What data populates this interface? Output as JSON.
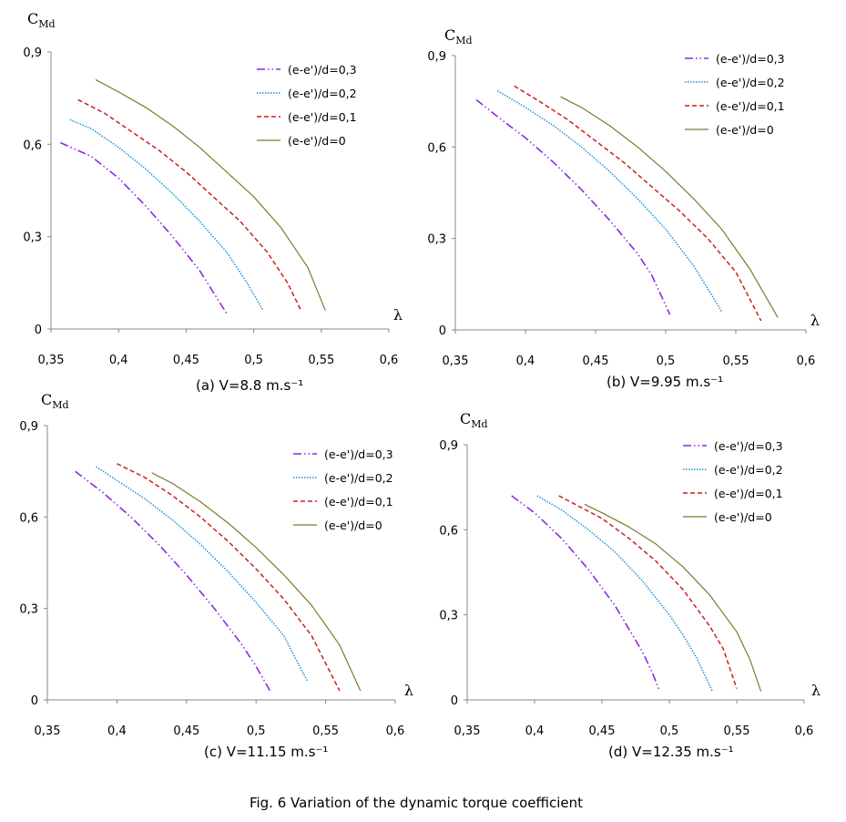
{
  "caption": "Fig. 6  Variation of the dynamic torque coefficient",
  "colors": {
    "s03": "#8a2be2",
    "s02": "#1f8fd6",
    "s01": "#cc1f1f",
    "s00": "#7b7b2e",
    "axis": "#888888"
  },
  "chart_data": [
    {
      "type": "line",
      "title": "(a) V=8.8 m.s⁻¹",
      "ylabel": "C",
      "ylabel_sub": "Md",
      "xlabel": "λ",
      "xlim": [
        0.35,
        0.6
      ],
      "ylim": [
        0,
        0.9
      ],
      "xticks": [
        "0,35",
        "0,4",
        "0,45",
        "0,5",
        "0,55",
        "0,6"
      ],
      "yticks": [
        "0",
        "0,3",
        "0,6",
        "0,9"
      ],
      "series": [
        {
          "name": "(e-e')/d=0,3",
          "x": [
            0.357,
            0.38,
            0.4,
            0.42,
            0.44,
            0.46,
            0.47,
            0.48
          ],
          "y": [
            0.605,
            0.56,
            0.49,
            0.4,
            0.3,
            0.19,
            0.12,
            0.05
          ]
        },
        {
          "name": "(e-e')/d=0,2",
          "x": [
            0.364,
            0.38,
            0.4,
            0.42,
            0.44,
            0.46,
            0.48,
            0.495,
            0.507
          ],
          "y": [
            0.68,
            0.65,
            0.59,
            0.52,
            0.44,
            0.35,
            0.25,
            0.15,
            0.06
          ]
        },
        {
          "name": "(e-e')/d=0,1",
          "x": [
            0.37,
            0.39,
            0.41,
            0.43,
            0.45,
            0.47,
            0.49,
            0.51,
            0.525,
            0.535
          ],
          "y": [
            0.745,
            0.7,
            0.64,
            0.58,
            0.51,
            0.43,
            0.35,
            0.25,
            0.15,
            0.06
          ]
        },
        {
          "name": "(e-e')/d=0",
          "x": [
            0.383,
            0.4,
            0.42,
            0.44,
            0.46,
            0.48,
            0.5,
            0.52,
            0.54,
            0.553
          ],
          "y": [
            0.81,
            0.77,
            0.72,
            0.66,
            0.59,
            0.51,
            0.43,
            0.33,
            0.2,
            0.06
          ]
        }
      ]
    },
    {
      "type": "line",
      "title": "(b) V=9.95 m.s⁻¹",
      "ylabel": "C",
      "ylabel_sub": "Md",
      "xlabel": "λ",
      "xlim": [
        0.35,
        0.6
      ],
      "ylim": [
        0,
        0.9
      ],
      "xticks": [
        "0,35",
        "0,4",
        "0,45",
        "0,5",
        "0,55",
        "0,6"
      ],
      "yticks": [
        "0",
        "0,3",
        "0,6",
        "0,9"
      ],
      "series": [
        {
          "name": "(e-e')/d=0,3",
          "x": [
            0.365,
            0.38,
            0.4,
            0.42,
            0.44,
            0.46,
            0.48,
            0.49,
            0.497,
            0.503
          ],
          "y": [
            0.755,
            0.7,
            0.63,
            0.55,
            0.46,
            0.36,
            0.25,
            0.18,
            0.11,
            0.05
          ]
        },
        {
          "name": "(e-e')/d=0,2",
          "x": [
            0.38,
            0.4,
            0.42,
            0.44,
            0.46,
            0.48,
            0.5,
            0.52,
            0.54
          ],
          "y": [
            0.785,
            0.73,
            0.67,
            0.6,
            0.52,
            0.43,
            0.33,
            0.21,
            0.06
          ]
        },
        {
          "name": "(e-e')/d=0,1",
          "x": [
            0.392,
            0.41,
            0.43,
            0.45,
            0.47,
            0.49,
            0.51,
            0.53,
            0.55,
            0.568
          ],
          "y": [
            0.8,
            0.75,
            0.69,
            0.62,
            0.55,
            0.47,
            0.39,
            0.3,
            0.19,
            0.03
          ]
        },
        {
          "name": "(e-e')/d=0",
          "x": [
            0.425,
            0.44,
            0.46,
            0.48,
            0.5,
            0.52,
            0.54,
            0.56,
            0.58
          ],
          "y": [
            0.765,
            0.73,
            0.67,
            0.6,
            0.52,
            0.43,
            0.33,
            0.2,
            0.04
          ]
        }
      ]
    },
    {
      "type": "line",
      "title": "(c) V=11.15 m.s⁻¹",
      "ylabel": "C",
      "ylabel_sub": "Md",
      "xlabel": "λ",
      "xlim": [
        0.35,
        0.6
      ],
      "ylim": [
        0,
        0.9
      ],
      "xticks": [
        "0,35",
        "0,4",
        "0,45",
        "0,5",
        "0,55",
        "0,6"
      ],
      "yticks": [
        "0",
        "0,3",
        "0,6",
        "0,9"
      ],
      "series": [
        {
          "name": "(e-e')/d=0,3",
          "x": [
            0.37,
            0.39,
            0.41,
            0.43,
            0.45,
            0.47,
            0.49,
            0.5,
            0.51
          ],
          "y": [
            0.75,
            0.68,
            0.6,
            0.51,
            0.41,
            0.3,
            0.18,
            0.11,
            0.03
          ]
        },
        {
          "name": "(e-e')/d=0,2",
          "x": [
            0.385,
            0.4,
            0.42,
            0.44,
            0.46,
            0.48,
            0.5,
            0.52,
            0.537
          ],
          "y": [
            0.765,
            0.72,
            0.66,
            0.59,
            0.51,
            0.42,
            0.32,
            0.21,
            0.06
          ]
        },
        {
          "name": "(e-e')/d=0,1",
          "x": [
            0.4,
            0.42,
            0.44,
            0.46,
            0.48,
            0.5,
            0.52,
            0.54,
            0.56
          ],
          "y": [
            0.775,
            0.73,
            0.67,
            0.6,
            0.52,
            0.43,
            0.33,
            0.21,
            0.03
          ]
        },
        {
          "name": "(e-e')/d=0",
          "x": [
            0.425,
            0.44,
            0.46,
            0.48,
            0.5,
            0.52,
            0.54,
            0.56,
            0.575
          ],
          "y": [
            0.745,
            0.71,
            0.65,
            0.58,
            0.5,
            0.41,
            0.31,
            0.18,
            0.03
          ]
        }
      ]
    },
    {
      "type": "line",
      "title": "(d) V=12.35 m.s⁻¹",
      "ylabel": "C",
      "ylabel_sub": "Md",
      "xlabel": "λ",
      "xlim": [
        0.35,
        0.6
      ],
      "ylim": [
        0,
        0.9
      ],
      "xticks": [
        "0,35",
        "0,4",
        "0,45",
        "0,5",
        "0,55",
        "0,6"
      ],
      "yticks": [
        "0",
        "0,3",
        "0,6",
        "0,9"
      ],
      "series": [
        {
          "name": "(e-e')/d=0,3",
          "x": [
            0.383,
            0.4,
            0.42,
            0.44,
            0.46,
            0.47,
            0.48,
            0.487,
            0.493
          ],
          "y": [
            0.72,
            0.66,
            0.57,
            0.46,
            0.33,
            0.25,
            0.17,
            0.1,
            0.03
          ]
        },
        {
          "name": "(e-e')/d=0,2",
          "x": [
            0.402,
            0.42,
            0.44,
            0.46,
            0.48,
            0.5,
            0.51,
            0.52,
            0.532
          ],
          "y": [
            0.72,
            0.67,
            0.6,
            0.52,
            0.42,
            0.3,
            0.23,
            0.15,
            0.03
          ]
        },
        {
          "name": "(e-e')/d=0,1",
          "x": [
            0.418,
            0.43,
            0.45,
            0.47,
            0.49,
            0.51,
            0.53,
            0.54,
            0.55
          ],
          "y": [
            0.72,
            0.69,
            0.64,
            0.57,
            0.49,
            0.39,
            0.26,
            0.18,
            0.04
          ]
        },
        {
          "name": "(e-e')/d=0",
          "x": [
            0.437,
            0.45,
            0.47,
            0.49,
            0.51,
            0.53,
            0.55,
            0.56,
            0.568
          ],
          "y": [
            0.69,
            0.66,
            0.61,
            0.55,
            0.47,
            0.37,
            0.24,
            0.14,
            0.03
          ]
        }
      ]
    }
  ]
}
